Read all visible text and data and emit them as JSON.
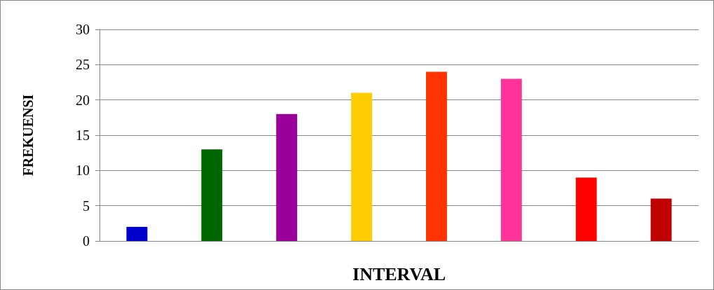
{
  "chart_data": {
    "type": "bar",
    "xlabel": "INTERVAL",
    "ylabel": "FREKUENSI",
    "categories": [
      null,
      null,
      null,
      null,
      null,
      null,
      null,
      null
    ],
    "values": [
      2,
      13,
      18,
      21,
      24,
      23,
      9,
      6
    ],
    "colors": [
      "#0000cc",
      "#006600",
      "#990099",
      "#ffcc00",
      "#ff3300",
      "#ff3399",
      "#ff0000",
      "#c00000"
    ],
    "ylim": [
      0,
      30
    ],
    "yticks": [
      0,
      5,
      10,
      15,
      20,
      25,
      30
    ],
    "grid": "y"
  }
}
